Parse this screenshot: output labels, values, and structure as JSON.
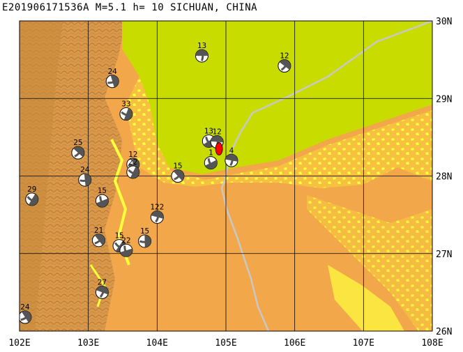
{
  "title": "E201906171536A  M=5.1  h= 10 SICHUAN, CHINA",
  "map": {
    "lon_range": [
      102,
      108
    ],
    "lat_range": [
      26,
      30
    ],
    "lon_labels": [
      "102E",
      "103E",
      "104E",
      "105E",
      "106E",
      "107E",
      "108E"
    ],
    "lat_labels": [
      "30N",
      "29N",
      "28N",
      "27N",
      "26N"
    ],
    "colors": {
      "mountain_dark": "#c88a3c",
      "mountain": "#e0a050",
      "plain": "#f2a84a",
      "lowland": "#ffff3c",
      "basin": "#c8dc00",
      "border": "#c8c8c8",
      "grid": "#000000",
      "mainshock": "#ff0000"
    }
  },
  "events": [
    {
      "depth": "13",
      "lon": 104.65,
      "lat": 29.55
    },
    {
      "depth": "12",
      "lon": 105.85,
      "lat": 29.42
    },
    {
      "depth": "24",
      "lon": 103.35,
      "lat": 29.22
    },
    {
      "depth": "33",
      "lon": 103.55,
      "lat": 28.8
    },
    {
      "depth": "13",
      "lon": 104.75,
      "lat": 28.45
    },
    {
      "depth": "12",
      "lon": 104.87,
      "lat": 28.44
    },
    {
      "depth": "25",
      "lon": 102.85,
      "lat": 28.3
    },
    {
      "depth": "12",
      "lon": 103.65,
      "lat": 28.15
    },
    {
      "depth": "22",
      "lon": 103.65,
      "lat": 28.05
    },
    {
      "depth": "1",
      "lon": 104.78,
      "lat": 28.17
    },
    {
      "depth": "4",
      "lon": 105.08,
      "lat": 28.2
    },
    {
      "depth": "15",
      "lon": 104.3,
      "lat": 28.0
    },
    {
      "depth": "24",
      "lon": 102.95,
      "lat": 27.95
    },
    {
      "depth": "29",
      "lon": 102.18,
      "lat": 27.7
    },
    {
      "depth": "15",
      "lon": 103.2,
      "lat": 27.68
    },
    {
      "depth": "122",
      "lon": 104.0,
      "lat": 27.47
    },
    {
      "depth": "21",
      "lon": 103.15,
      "lat": 27.17
    },
    {
      "depth": "15",
      "lon": 103.82,
      "lat": 27.16
    },
    {
      "depth": "15",
      "lon": 103.45,
      "lat": 27.1
    },
    {
      "depth": "22",
      "lon": 103.55,
      "lat": 27.04
    },
    {
      "depth": "27",
      "lon": 103.2,
      "lat": 26.5
    },
    {
      "depth": "24",
      "lon": 102.08,
      "lat": 26.18
    }
  ],
  "mainshock": {
    "lon": 104.9,
    "lat": 28.35
  }
}
